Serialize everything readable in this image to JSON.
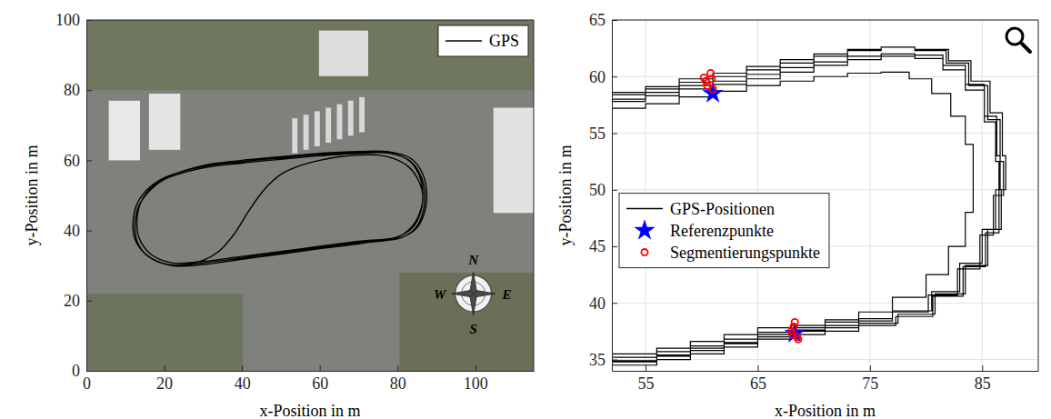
{
  "chart_data": [
    {
      "type": "line",
      "xlabel": "x-Position in m",
      "ylabel": "y-Position in m",
      "xlim": [
        0,
        115
      ],
      "ylim": [
        0,
        100
      ],
      "xticks": [
        0,
        20,
        40,
        60,
        80,
        100
      ],
      "yticks": [
        0,
        20,
        40,
        60,
        80,
        100
      ],
      "grid": false,
      "legend": "upper right",
      "annotations": [
        "N",
        "E",
        "S",
        "W"
      ],
      "series": [
        {
          "name": "GPS",
          "color": "#000000",
          "type": "line",
          "line_style": "smooth",
          "x": [
            26,
            30,
            34,
            38,
            42,
            46,
            50,
            55,
            60,
            65,
            70,
            75,
            79,
            83,
            85.5,
            86.5,
            86,
            84,
            80,
            75,
            70,
            60,
            50,
            40,
            30,
            22,
            16,
            13,
            12.5,
            13.5,
            16,
            20,
            30,
            40,
            50,
            60,
            70,
            78,
            83,
            86,
            87,
            86.5,
            84.5,
            80.5,
            70,
            60,
            50,
            40,
            30,
            21,
            15.5,
            12.5,
            12,
            13,
            15.5,
            20,
            30,
            40,
            50,
            60,
            70,
            77.5,
            82.5,
            85.5,
            86.5,
            86,
            84,
            80,
            70,
            60,
            50,
            40,
            30,
            22,
            16.5,
            13.5,
            13,
            14,
            16.5,
            21,
            30,
            40,
            50,
            60,
            70,
            78,
            83.5,
            86.5,
            87.5,
            87,
            85,
            81,
            70,
            60,
            50,
            45
          ],
          "y": [
            30.5,
            31.5,
            34,
            39,
            46,
            52,
            56,
            58.5,
            60,
            61,
            61.5,
            61.5,
            60.5,
            58,
            54,
            50,
            46,
            41.5,
            38,
            37,
            36.2,
            34.8,
            33.3,
            31.8,
            30.3,
            30,
            32.5,
            37,
            42,
            47,
            51,
            54.5,
            57.8,
            59.2,
            60.3,
            61.3,
            62,
            62,
            60,
            55.5,
            50,
            45,
            40.5,
            37.8,
            36.6,
            35.2,
            33.8,
            32.2,
            30.8,
            30.3,
            33,
            37.5,
            42.5,
            47.5,
            51.5,
            55,
            58.2,
            59.6,
            60.7,
            61.7,
            62.3,
            62.2,
            60.3,
            56,
            50.5,
            45.5,
            41,
            38.2,
            36.9,
            35.5,
            34,
            32.6,
            31.2,
            30.8,
            33.3,
            38,
            43,
            48,
            52,
            55.3,
            58.5,
            60,
            61,
            62,
            62.5,
            62.4,
            60.5,
            56,
            50.5,
            45.3,
            40.8,
            38,
            36.4,
            35,
            33.5,
            32.8
          ]
        }
      ]
    },
    {
      "type": "line",
      "xlabel": "x-Position in m",
      "ylabel": "y-Position in m",
      "xlim": [
        52,
        90
      ],
      "ylim": [
        34,
        65
      ],
      "xticks": [
        55,
        65,
        75,
        85
      ],
      "yticks": [
        35,
        40,
        45,
        50,
        55,
        60,
        65
      ],
      "grid": true,
      "legend": "center left",
      "series": [
        {
          "name": "GPS-Positionen",
          "color": "#000000",
          "type": "line",
          "line_style": "step",
          "x": [
            52,
            55,
            58,
            61,
            64,
            67,
            70,
            73,
            76,
            78.5,
            80.5,
            82.2,
            83.5,
            84.2,
            84.2,
            83.5,
            82,
            80,
            77,
            74,
            71,
            68,
            65,
            62,
            59,
            56,
            52,
            null,
            52,
            55,
            58,
            61,
            64,
            67,
            70,
            73,
            76,
            79,
            81.5,
            83.5,
            85.2,
            86.3,
            86.6,
            86.2,
            85,
            83,
            80.5,
            77,
            74,
            71,
            68,
            65,
            62,
            59,
            56,
            52,
            null,
            52,
            55,
            58,
            61,
            64,
            67,
            70,
            73,
            76,
            79,
            82,
            84,
            85.7,
            86.8,
            87.1,
            86.7,
            85.5,
            83.5,
            80.8,
            77.5,
            74,
            71,
            68,
            65,
            62,
            59,
            56,
            52,
            null,
            52,
            55,
            58,
            61,
            64,
            67,
            70,
            73,
            76,
            79,
            81.5,
            83.5,
            85.2,
            86.2,
            86.5,
            86,
            84.8,
            82.8,
            80.2,
            77,
            74,
            71,
            68,
            65,
            62,
            59,
            56,
            52,
            null,
            52,
            55,
            58,
            61,
            64,
            67,
            70,
            73,
            76,
            79,
            81.8,
            83.8,
            85.5,
            86.6,
            86.9,
            86.5,
            85.3,
            83.3,
            80.6,
            77.3,
            74,
            71,
            68,
            65,
            62,
            59,
            56,
            52
          ],
          "y": [
            57.2,
            57.6,
            58.2,
            58.7,
            59.2,
            59.6,
            60,
            60.3,
            60.4,
            59.8,
            58.5,
            56.5,
            54,
            51,
            48,
            45,
            42.5,
            40.5,
            39.2,
            38.5,
            37.8,
            37.2,
            36.5,
            36,
            35.4,
            34.9,
            34.3,
            null,
            58,
            58.6,
            59.2,
            59.6,
            60.2,
            60.8,
            61.3,
            61.8,
            62,
            61.9,
            61,
            59.3,
            56.5,
            53,
            50,
            46.5,
            43.5,
            41,
            39.3,
            38.4,
            38,
            37.6,
            37,
            36.4,
            35.8,
            35.3,
            34.8,
            34.2,
            null,
            58.4,
            58.9,
            59.5,
            60,
            60.6,
            61.2,
            61.8,
            62.3,
            62.6,
            62.4,
            61.4,
            59.6,
            56.8,
            53,
            50,
            46.5,
            43.3,
            40.8,
            39,
            38.2,
            37.8,
            37.5,
            37.4,
            36.8,
            36.2,
            35.7,
            35.2,
            34.7,
            null,
            57.8,
            58.3,
            58.9,
            59.3,
            59.8,
            60.4,
            61,
            61.5,
            61.8,
            61.6,
            60.6,
            58.8,
            56,
            52.5,
            49.5,
            46,
            43,
            40.7,
            39.2,
            38.6,
            38.3,
            38,
            37.8,
            37.2,
            36.6,
            36,
            35.5,
            35,
            null,
            58.6,
            59.1,
            59.8,
            60.3,
            60.9,
            61.5,
            62,
            62.4,
            62.6,
            62.3,
            61.2,
            59.2,
            56.2,
            52.5,
            49.5,
            46.2,
            43.2,
            40.6,
            38.8,
            38,
            37.5,
            37.2,
            36.8,
            36.1,
            35.5,
            35,
            34.5,
            34
          ]
        },
        {
          "name": "Referenzpunkte",
          "color": "#0000ff",
          "type": "scatter",
          "marker": "star",
          "x": [
            61,
            68.3
          ],
          "y": [
            58.5,
            37.3
          ]
        },
        {
          "name": "Segmentierungspunkte",
          "color": "#ff0000",
          "type": "scatter",
          "marker": "circle",
          "x": [
            60.4,
            60.2,
            60.8,
            61,
            60.5,
            60.9,
            68.3,
            68,
            68.5,
            68.2,
            68.6,
            68.1
          ],
          "y": [
            59.6,
            59.9,
            60.3,
            58.9,
            59.2,
            59.8,
            38.3,
            37.5,
            37,
            37.9,
            36.8,
            37.2
          ]
        }
      ]
    }
  ]
}
